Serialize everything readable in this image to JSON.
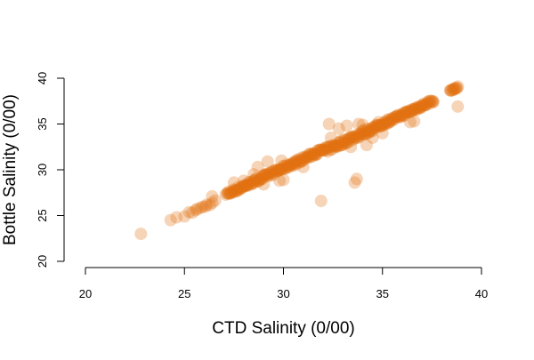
{
  "chart_data": {
    "type": "scatter",
    "title": "",
    "xlabel": "CTD Salinity (0/00)",
    "ylabel": "Bottle Salinity (0/00)",
    "xlim": [
      20,
      40
    ],
    "ylim": [
      20,
      40
    ],
    "xticks": [
      "20",
      "25",
      "30",
      "35",
      "40"
    ],
    "yticks": [
      "20",
      "25",
      "30",
      "35",
      "40"
    ],
    "grid": false,
    "legend": "none",
    "point_color": "#e07010",
    "point_opacity": 0.3,
    "trend_segments": [
      {
        "x0": 25.3,
        "x1": 26.5,
        "step": 0.12,
        "noise": 0.15,
        "offset": 0.0
      },
      {
        "x0": 27.1,
        "x1": 32.0,
        "step": 0.04,
        "noise": 0.22,
        "offset": 0.2
      },
      {
        "x0": 32.0,
        "x1": 34.5,
        "step": 0.04,
        "noise": 0.3,
        "offset": 0.0
      },
      {
        "x0": 34.5,
        "x1": 37.6,
        "step": 0.04,
        "noise": 0.2,
        "offset": 0.0
      },
      {
        "x0": 38.4,
        "x1": 38.8,
        "step": 0.04,
        "noise": 0.08,
        "offset": 0.2
      }
    ],
    "points": [
      {
        "x": 22.8,
        "y": 23.0
      },
      {
        "x": 24.3,
        "y": 24.5
      },
      {
        "x": 24.6,
        "y": 24.8
      },
      {
        "x": 25.0,
        "y": 24.9
      },
      {
        "x": 26.4,
        "y": 27.1
      },
      {
        "x": 27.5,
        "y": 28.6
      },
      {
        "x": 28.0,
        "y": 28.8
      },
      {
        "x": 28.7,
        "y": 30.3
      },
      {
        "x": 28.5,
        "y": 29.5
      },
      {
        "x": 29.0,
        "y": 28.4
      },
      {
        "x": 29.2,
        "y": 30.9
      },
      {
        "x": 29.8,
        "y": 28.8
      },
      {
        "x": 29.9,
        "y": 31.0
      },
      {
        "x": 30.0,
        "y": 28.9
      },
      {
        "x": 30.6,
        "y": 30.5
      },
      {
        "x": 31.0,
        "y": 30.3
      },
      {
        "x": 31.5,
        "y": 31.8
      },
      {
        "x": 31.9,
        "y": 26.6
      },
      {
        "x": 32.3,
        "y": 35.0
      },
      {
        "x": 32.4,
        "y": 33.5
      },
      {
        "x": 32.8,
        "y": 34.5
      },
      {
        "x": 33.0,
        "y": 33.0
      },
      {
        "x": 33.2,
        "y": 34.8
      },
      {
        "x": 33.4,
        "y": 32.5
      },
      {
        "x": 33.6,
        "y": 28.6
      },
      {
        "x": 33.7,
        "y": 29.0
      },
      {
        "x": 33.8,
        "y": 35.0
      },
      {
        "x": 34.0,
        "y": 34.9
      },
      {
        "x": 34.2,
        "y": 32.7
      },
      {
        "x": 34.5,
        "y": 33.5
      },
      {
        "x": 34.8,
        "y": 35.2
      },
      {
        "x": 35.0,
        "y": 34.0
      },
      {
        "x": 35.3,
        "y": 35.5
      },
      {
        "x": 36.4,
        "y": 35.2
      },
      {
        "x": 36.6,
        "y": 35.3
      },
      {
        "x": 38.8,
        "y": 36.9
      }
    ]
  }
}
